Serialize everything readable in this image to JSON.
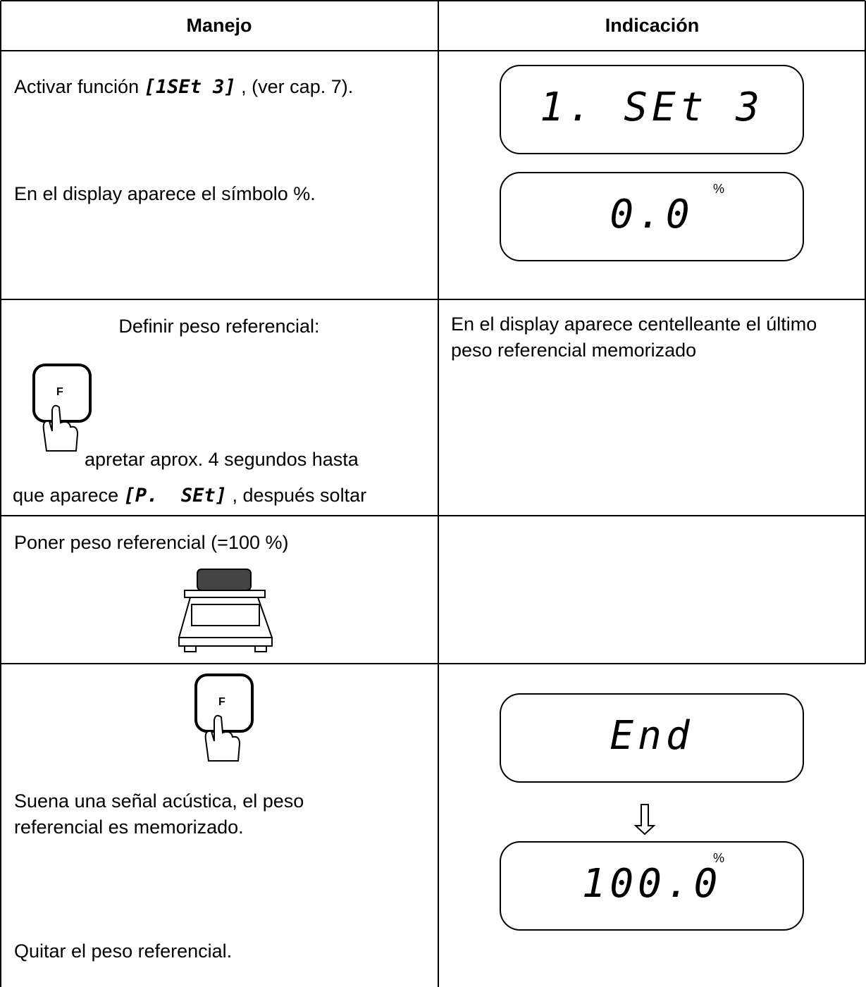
{
  "header": {
    "left": "Manejo",
    "right": "Indicación"
  },
  "rows": [
    {
      "left": {
        "before": "Activar función",
        "code": "[1SEt 3]",
        "after": ", (ver cap. 7).",
        "note": "En el display aparece el símbolo %."
      },
      "right": {
        "displays": [
          {
            "text": "1. SEt 3"
          },
          {
            "text": "0.0",
            "unit": "%"
          }
        ]
      }
    },
    {
      "left": {
        "title": "Definir peso referencial:",
        "key": "F",
        "line1": "apretar aprox. 4 segundos hasta",
        "line2_before": "que aparece",
        "code": "[P.  SEt]",
        "line2_after": ", después soltar"
      },
      "right": {
        "text": "En el display aparece centelleante el último peso referencial memorizado"
      }
    },
    {
      "left": {
        "text": "Poner peso referencial (=100 %)"
      }
    },
    {
      "left": {
        "key": "F",
        "text1": "Suena una señal acústica, el peso referencial es memorizado.",
        "text2": "Quitar el peso referencial."
      },
      "right": {
        "displays": [
          {
            "text": "End"
          },
          {
            "text": "100.0",
            "unit": "%"
          }
        ]
      }
    }
  ]
}
